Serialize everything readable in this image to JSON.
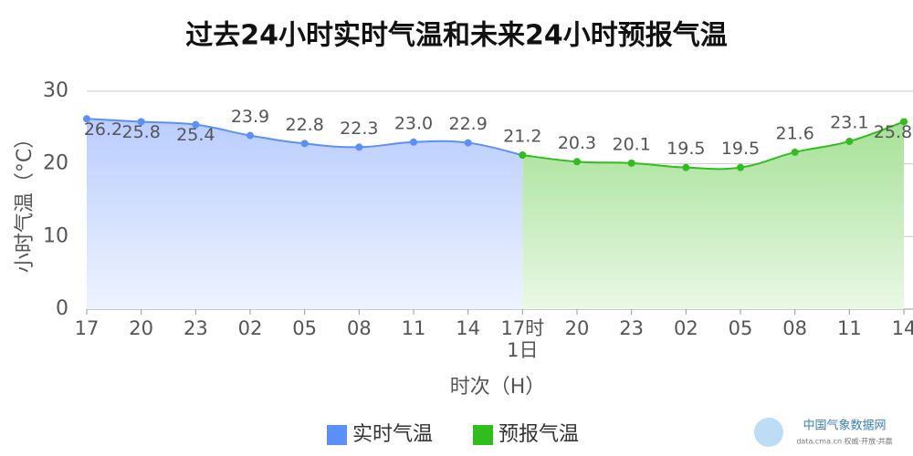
{
  "chart_data": {
    "type": "area",
    "title": "过去24小时实时气温和未来24小时预报气温",
    "x_label": "时次（H）",
    "y_label": "小时气温（°C）",
    "categories": [
      "17",
      "20",
      "23",
      "02",
      "05",
      "08",
      "11",
      "14",
      "17时\n1日",
      "20",
      "23",
      "02",
      "05",
      "08",
      "11",
      "14"
    ],
    "series": [
      {
        "name": "实时气温",
        "color": "#5b8ff9",
        "values": [
          26.2,
          25.8,
          25.4,
          23.9,
          22.8,
          22.3,
          23.0,
          22.9,
          21.2,
          null,
          null,
          null,
          null,
          null,
          null,
          null
        ],
        "value_labels": [
          "26.2",
          "25.8",
          "25.4",
          "23.9",
          "22.8",
          "22.3",
          "23.0",
          "22.9",
          "21.2",
          null,
          null,
          null,
          null,
          null,
          null,
          null
        ]
      },
      {
        "name": "预报气温",
        "color": "#2fbe1b",
        "values": [
          null,
          null,
          null,
          null,
          null,
          null,
          null,
          null,
          21.2,
          20.3,
          20.1,
          19.5,
          19.5,
          21.6,
          23.1,
          25.8
        ],
        "value_labels": [
          null,
          null,
          null,
          null,
          null,
          null,
          null,
          null,
          null,
          "20.3",
          "20.1",
          "19.5",
          "19.5",
          "21.6",
          "23.1",
          "25.8"
        ]
      }
    ],
    "ylim": [
      0,
      30
    ],
    "yticks": [
      0,
      10,
      20,
      30
    ],
    "grid": true,
    "watermark": {
      "name": "中国气象数据网",
      "site": "data.cma.cn 权威·开放·共赢"
    }
  }
}
